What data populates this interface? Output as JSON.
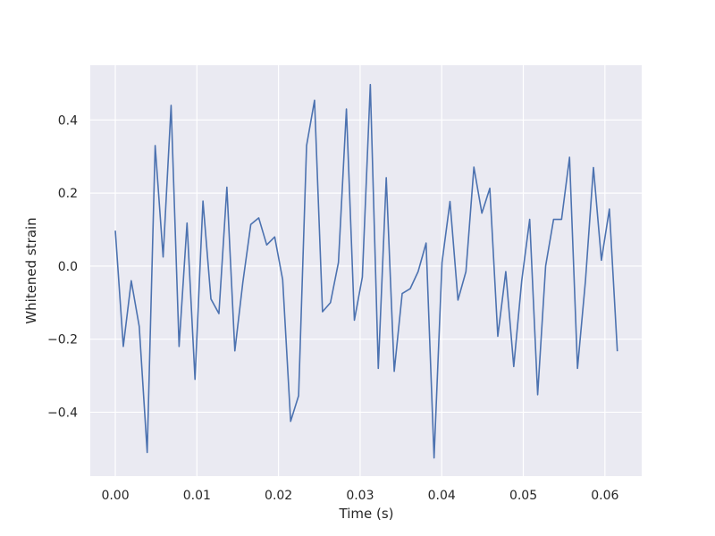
{
  "chart_data": {
    "type": "line",
    "title": "",
    "xlabel": "Time (s)",
    "ylabel": "Whitened strain",
    "xlim": [
      -0.00307,
      0.06451
    ],
    "ylim": [
      -0.575,
      0.55
    ],
    "xticks": [
      0.0,
      0.01,
      0.02,
      0.03,
      0.04,
      0.05,
      0.06
    ],
    "xtick_labels": [
      "0.00",
      "0.01",
      "0.02",
      "0.03",
      "0.04",
      "0.05",
      "0.06"
    ],
    "yticks": [
      -0.4,
      -0.2,
      0.0,
      0.2,
      0.4
    ],
    "ytick_labels": [
      "−0.4",
      "−0.2",
      "0.0",
      "0.2",
      "0.4"
    ],
    "grid": true,
    "background": "#eaeaf2",
    "line_color": "#4c72b0",
    "series": [
      {
        "x": [
          0.0,
          0.000977,
          0.001953,
          0.00293,
          0.003906,
          0.004883,
          0.005859,
          0.006836,
          0.007813,
          0.008789,
          0.009766,
          0.010742,
          0.011719,
          0.012695,
          0.013672,
          0.014648,
          0.015625,
          0.016602,
          0.017578,
          0.018555,
          0.019531,
          0.020508,
          0.021484,
          0.022461,
          0.023438,
          0.024414,
          0.025391,
          0.026367,
          0.027344,
          0.02832,
          0.029297,
          0.030273,
          0.03125,
          0.032227,
          0.033203,
          0.03418,
          0.035156,
          0.036133,
          0.037109,
          0.038086,
          0.039063,
          0.040039,
          0.041016,
          0.041992,
          0.042969,
          0.043945,
          0.044922,
          0.045898,
          0.046875,
          0.047852,
          0.048828,
          0.049805,
          0.050781,
          0.051758,
          0.052734,
          0.053711,
          0.054688,
          0.055664,
          0.056641,
          0.057617,
          0.058594,
          0.05957,
          0.060547,
          0.061523
        ],
        "y": [
          0.097,
          -0.22,
          -0.04,
          -0.165,
          -0.51,
          0.33,
          0.025,
          0.44,
          -0.22,
          0.118,
          -0.31,
          0.178,
          -0.09,
          -0.13,
          0.216,
          -0.232,
          -0.045,
          0.114,
          0.132,
          0.058,
          0.08,
          -0.037,
          -0.425,
          -0.355,
          0.33,
          0.454,
          -0.125,
          -0.1,
          0.01,
          0.43,
          -0.148,
          -0.03,
          0.497,
          -0.28,
          0.242,
          -0.288,
          -0.075,
          -0.062,
          -0.015,
          0.063,
          -0.525,
          0.01,
          0.177,
          -0.093,
          -0.015,
          0.271,
          0.145,
          0.213,
          -0.192,
          -0.015,
          -0.275,
          -0.04,
          0.128,
          -0.352,
          0.0,
          0.128,
          0.128,
          0.298,
          -0.28,
          -0.04,
          0.27,
          0.016,
          0.156,
          -0.233
        ]
      }
    ]
  }
}
